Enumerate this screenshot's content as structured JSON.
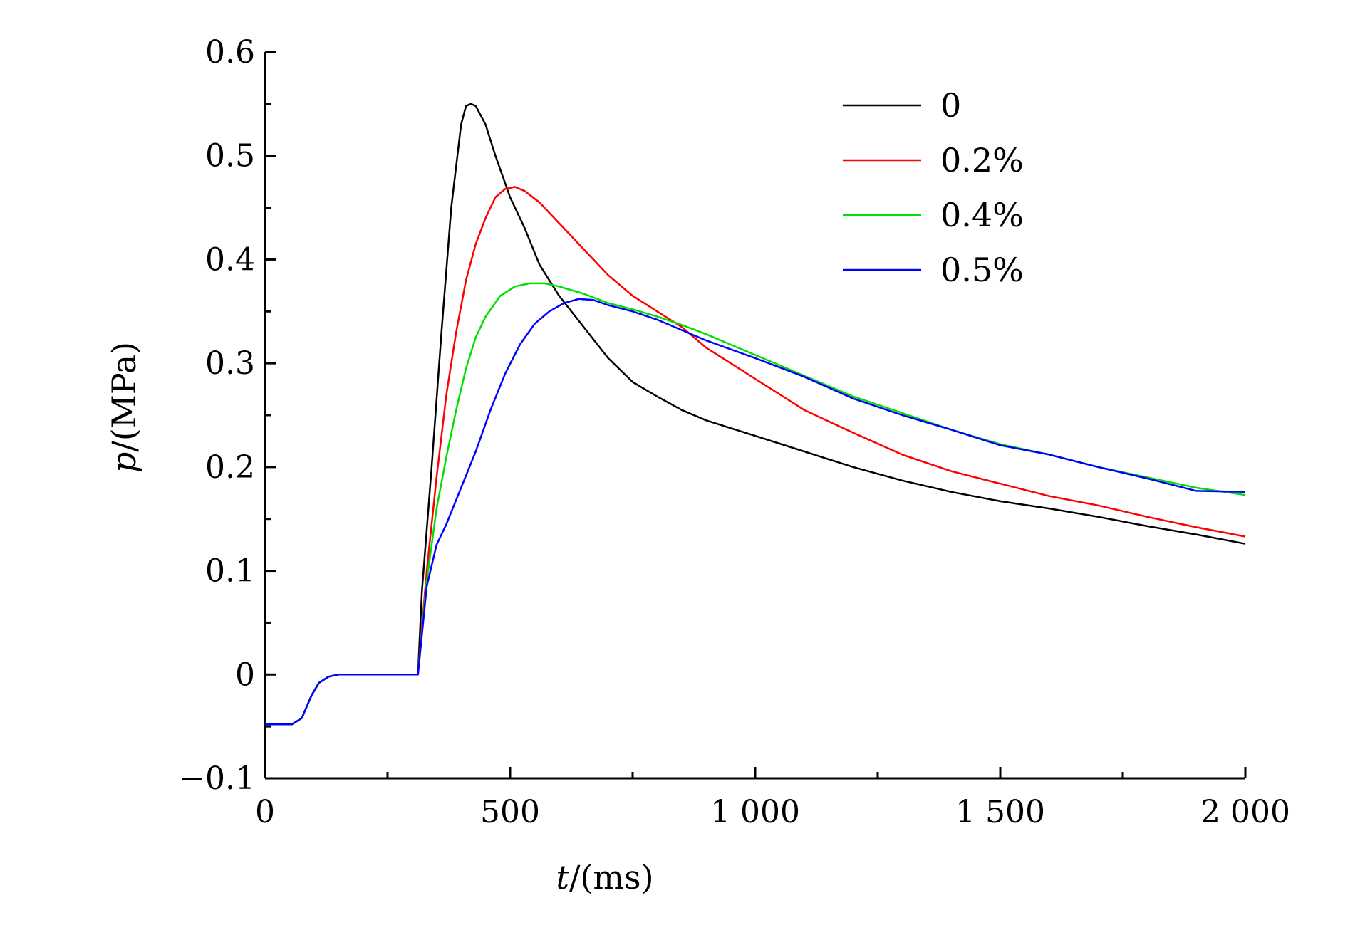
{
  "chart_data": {
    "type": "line",
    "title": "",
    "xlabel_var": "t",
    "xlabel_unit": "/(ms)",
    "ylabel_var": "p",
    "ylabel_unit": "/(MPa)",
    "xlim": [
      0,
      2000
    ],
    "ylim": [
      -0.1,
      0.6
    ],
    "xticks": [
      0,
      500,
      1000,
      1500,
      2000
    ],
    "xtick_labels": [
      "0",
      "500",
      "1 000",
      "1 500",
      "2 000"
    ],
    "xminor_ticks": [
      250,
      750,
      1250,
      1750
    ],
    "yticks": [
      -0.1,
      0,
      0.1,
      0.2,
      0.3,
      0.4,
      0.5,
      0.6
    ],
    "ytick_labels": [
      "−0.1",
      "0",
      "0.1",
      "0.2",
      "0.3",
      "0.4",
      "0.5",
      "0.6"
    ],
    "yminor_ticks": [
      -0.05,
      0.05,
      0.15,
      0.25,
      0.35,
      0.45,
      0.55
    ],
    "grid": false,
    "legend_position": "top-right",
    "series": [
      {
        "name": "0",
        "color": "#000000",
        "x": [
          0,
          55,
          75,
          95,
          110,
          130,
          150,
          200,
          250,
          300,
          312,
          320,
          340,
          360,
          380,
          400,
          410,
          420,
          430,
          450,
          470,
          500,
          530,
          560,
          600,
          650,
          700,
          750,
          800,
          850,
          900,
          1000,
          1100,
          1200,
          1300,
          1400,
          1500,
          1600,
          1700,
          1800,
          1900,
          2000
        ],
        "y": [
          -0.048,
          -0.048,
          -0.042,
          -0.02,
          -0.008,
          -0.002,
          0,
          0,
          0,
          0,
          0,
          0.08,
          0.2,
          0.33,
          0.45,
          0.53,
          0.548,
          0.55,
          0.548,
          0.53,
          0.5,
          0.46,
          0.43,
          0.395,
          0.365,
          0.335,
          0.305,
          0.282,
          0.268,
          0.255,
          0.245,
          0.23,
          0.215,
          0.2,
          0.187,
          0.176,
          0.167,
          0.16,
          0.152,
          0.143,
          0.135,
          0.126
        ]
      },
      {
        "name": "0.2%",
        "color": "#ff0000",
        "x": [
          0,
          55,
          75,
          95,
          110,
          130,
          150,
          200,
          250,
          300,
          312,
          330,
          350,
          370,
          390,
          410,
          430,
          450,
          470,
          490,
          510,
          530,
          560,
          600,
          650,
          700,
          750,
          800,
          850,
          900,
          950,
          1000,
          1100,
          1200,
          1300,
          1400,
          1500,
          1600,
          1700,
          1800,
          1900,
          2000
        ],
        "y": [
          -0.048,
          -0.048,
          -0.042,
          -0.02,
          -0.008,
          -0.002,
          0,
          0,
          0,
          0,
          0,
          0.1,
          0.19,
          0.27,
          0.33,
          0.38,
          0.415,
          0.44,
          0.46,
          0.468,
          0.47,
          0.466,
          0.455,
          0.435,
          0.41,
          0.385,
          0.365,
          0.35,
          0.335,
          0.315,
          0.3,
          0.285,
          0.255,
          0.233,
          0.212,
          0.196,
          0.184,
          0.172,
          0.163,
          0.152,
          0.142,
          0.133
        ]
      },
      {
        "name": "0.4%",
        "color": "#00e000",
        "x": [
          0,
          55,
          75,
          95,
          110,
          130,
          150,
          200,
          250,
          300,
          312,
          330,
          350,
          370,
          390,
          410,
          430,
          450,
          480,
          510,
          540,
          570,
          600,
          650,
          700,
          750,
          800,
          850,
          900,
          1000,
          1100,
          1200,
          1300,
          1400,
          1500,
          1600,
          1700,
          1800,
          1900,
          2000
        ],
        "y": [
          -0.048,
          -0.048,
          -0.042,
          -0.02,
          -0.008,
          -0.002,
          0,
          0,
          0,
          0,
          0,
          0.09,
          0.16,
          0.21,
          0.255,
          0.295,
          0.325,
          0.345,
          0.365,
          0.374,
          0.377,
          0.377,
          0.374,
          0.367,
          0.358,
          0.352,
          0.345,
          0.337,
          0.328,
          0.308,
          0.288,
          0.268,
          0.252,
          0.236,
          0.222,
          0.212,
          0.2,
          0.19,
          0.18,
          0.173
        ]
      },
      {
        "name": "0.5%",
        "color": "#0000ff",
        "x": [
          0,
          55,
          75,
          95,
          110,
          130,
          150,
          200,
          250,
          300,
          312,
          330,
          350,
          370,
          400,
          430,
          460,
          490,
          520,
          550,
          580,
          610,
          640,
          670,
          700,
          750,
          800,
          850,
          900,
          1000,
          1100,
          1200,
          1300,
          1400,
          1500,
          1600,
          1700,
          1800,
          1900,
          2000
        ],
        "y": [
          -0.048,
          -0.048,
          -0.042,
          -0.02,
          -0.008,
          -0.002,
          0,
          0,
          0,
          0,
          0,
          0.085,
          0.125,
          0.145,
          0.18,
          0.215,
          0.255,
          0.29,
          0.318,
          0.338,
          0.35,
          0.358,
          0.362,
          0.361,
          0.356,
          0.35,
          0.342,
          0.332,
          0.322,
          0.305,
          0.287,
          0.266,
          0.25,
          0.236,
          0.221,
          0.212,
          0.2,
          0.189,
          0.177,
          0.176
        ]
      }
    ]
  }
}
